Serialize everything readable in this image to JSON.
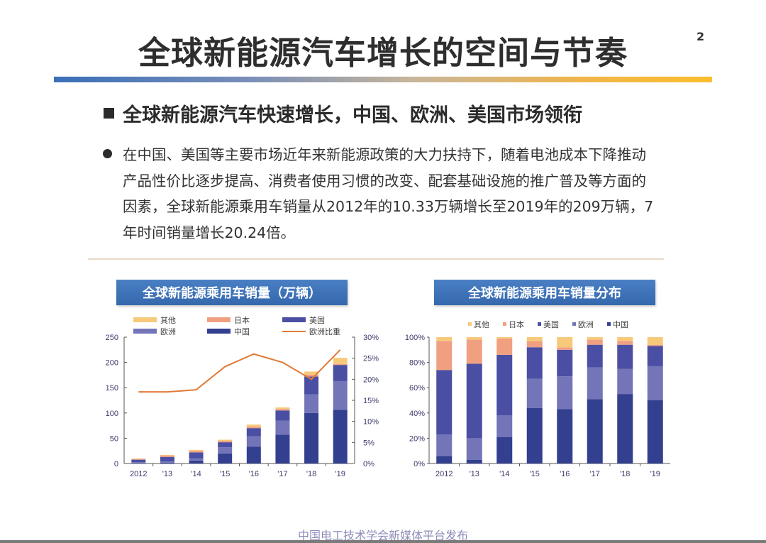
{
  "slide": {
    "title": "全球新能源汽车增长的空间与节奏",
    "page_number": "2",
    "subtitle": "全球新能源汽车快速增长，中国、欧洲、美国市场领衔",
    "bullet_text": "在中国、美国等主要市场近年来新能源政策的大力扶持下，随着电池成本下降推动产品性价比逐步提高、消费者使用习惯的改变、配套基础设施的推广普及等方面的因素，全球新能源乘用车销量从2012年的10.33万辆增长至2019年的209万辆，7年时间销量增长20.24倍。",
    "footer": "中国电工技术学会新媒体平台发布"
  },
  "colors": {
    "title_bar_start": "#3a6fb8",
    "title_bar_end": "#fbbd2e",
    "china": "#333f8f",
    "europe": "#7375b8",
    "usa": "#4a4fa3",
    "japan": "#f0a080",
    "other": "#f7c97a",
    "europe_share_line": "#e07b39",
    "chart_header": "#3d72b6"
  },
  "chart_data": [
    {
      "type": "bar",
      "stacked": true,
      "title": "全球新能源乘用车销量（万辆）",
      "categories": [
        "2012",
        "'13",
        "'14",
        "'15",
        "'16",
        "'17",
        "'18",
        "'19"
      ],
      "series": [
        {
          "name": "中国",
          "values": [
            1,
            1.5,
            6,
            20,
            33,
            57,
            100,
            106
          ]
        },
        {
          "name": "欧洲",
          "values": [
            1.5,
            2.5,
            4,
            12,
            21,
            28,
            37,
            57
          ]
        },
        {
          "name": "美国",
          "values": [
            5,
            9,
            12,
            10,
            16,
            20,
            35,
            32
          ]
        },
        {
          "name": "日本",
          "values": [
            2,
            3,
            3.5,
            3,
            3,
            3,
            4,
            2
          ]
        },
        {
          "name": "其他",
          "values": [
            0.5,
            1,
            1.5,
            2,
            4,
            3,
            6,
            12
          ]
        }
      ],
      "line_series": {
        "name": "欧洲比重",
        "axis": "right",
        "values": [
          17,
          17,
          17.5,
          23,
          26,
          24,
          20,
          27
        ]
      },
      "xlabel": "",
      "ylabel": "",
      "ylim": [
        0,
        250
      ],
      "yticks": [
        0,
        50,
        100,
        150,
        200,
        250
      ],
      "y2lim": [
        0,
        30
      ],
      "y2ticks": [
        "0%",
        "5%",
        "10%",
        "15%",
        "20%",
        "25%",
        "30%"
      ],
      "legend": [
        "其他",
        "日本",
        "美国",
        "欧洲",
        "中国",
        "欧洲比重"
      ],
      "legend_position": "top",
      "grid": false
    },
    {
      "type": "bar",
      "stacked": true,
      "percent": true,
      "title": "全球新能源乘用车销量分布",
      "categories": [
        "2012",
        "'13",
        "'14",
        "'15",
        "'16",
        "'17",
        "'18",
        "'19"
      ],
      "series": [
        {
          "name": "中国",
          "values": [
            6,
            3,
            21,
            44,
            43,
            51,
            55,
            50
          ]
        },
        {
          "name": "欧洲",
          "values": [
            17,
            17,
            17,
            23,
            26,
            25,
            20,
            27
          ]
        },
        {
          "name": "美国",
          "values": [
            51,
            59,
            48,
            25,
            21,
            18,
            19,
            16
          ]
        },
        {
          "name": "日本",
          "values": [
            23,
            19,
            13,
            5,
            2,
            4,
            3,
            1
          ]
        },
        {
          "name": "其他",
          "values": [
            3,
            2,
            1,
            3,
            8,
            2,
            3,
            6
          ]
        }
      ],
      "ylim": [
        0,
        100
      ],
      "yticks": [
        "0%",
        "20%",
        "40%",
        "60%",
        "80%",
        "100%"
      ],
      "legend": [
        "其他",
        "日本",
        "美国",
        "欧洲",
        "中国"
      ],
      "legend_position": "top",
      "grid": false
    }
  ]
}
